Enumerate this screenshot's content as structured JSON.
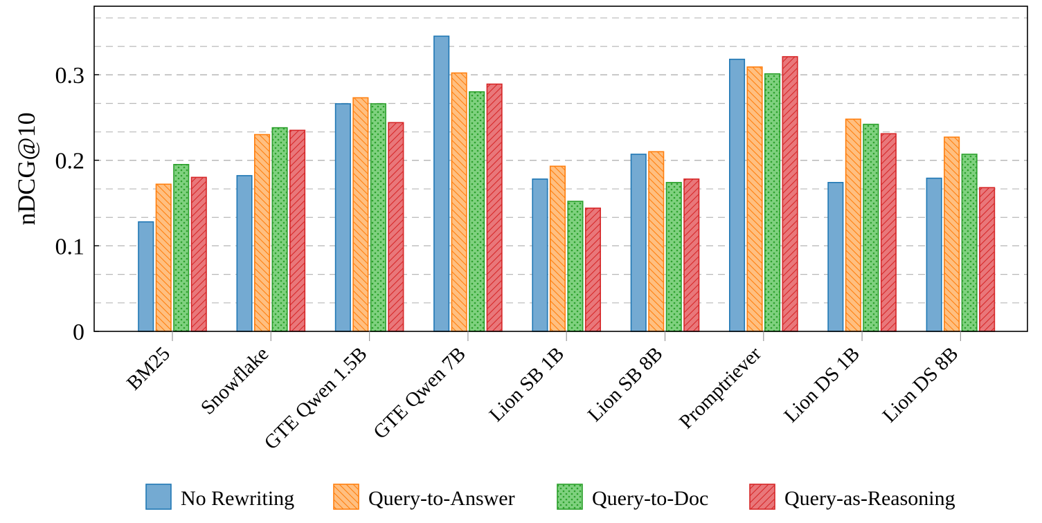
{
  "chart_data": {
    "type": "bar",
    "title": "",
    "xlabel": "",
    "ylabel": "nDCG@10",
    "ylim": [
      0,
      0.38
    ],
    "yticks": [
      0,
      0.1,
      0.2,
      0.3
    ],
    "ytick_labels": [
      "0",
      "0.1",
      "0.2",
      "0.3"
    ],
    "minor_grid_step": 0.0333,
    "grid": true,
    "legend_position": "bottom",
    "categories": [
      "BM25",
      "Snowflake",
      "GTE Qwen 1.5B",
      "GTE Qwen 7B",
      "Lion SB 1B",
      "Lion SB 8B",
      "Promptriever",
      "Lion DS 1B",
      "Lion DS 8B"
    ],
    "series": [
      {
        "name": "No Rewriting",
        "pattern": "solid",
        "fill": "#74aad2",
        "stroke": "#1f77b4",
        "values": [
          0.128,
          0.182,
          0.266,
          0.345,
          0.178,
          0.207,
          0.318,
          0.174,
          0.179
        ]
      },
      {
        "name": "Query-to-Answer",
        "pattern": "back-hatch",
        "fill": "#ffbf80",
        "stroke": "#ff7f0e",
        "values": [
          0.172,
          0.23,
          0.273,
          0.302,
          0.193,
          0.21,
          0.309,
          0.248,
          0.227
        ]
      },
      {
        "name": "Query-to-Doc",
        "pattern": "dots",
        "fill": "#7fd17f",
        "stroke": "#2ca02c",
        "values": [
          0.195,
          0.238,
          0.266,
          0.28,
          0.152,
          0.174,
          0.301,
          0.242,
          0.207
        ]
      },
      {
        "name": "Query-as-Reasoning",
        "pattern": "forward-hatch",
        "fill": "#e9777a",
        "stroke": "#d62728",
        "values": [
          0.18,
          0.235,
          0.244,
          0.289,
          0.144,
          0.178,
          0.321,
          0.231,
          0.168
        ]
      }
    ]
  }
}
